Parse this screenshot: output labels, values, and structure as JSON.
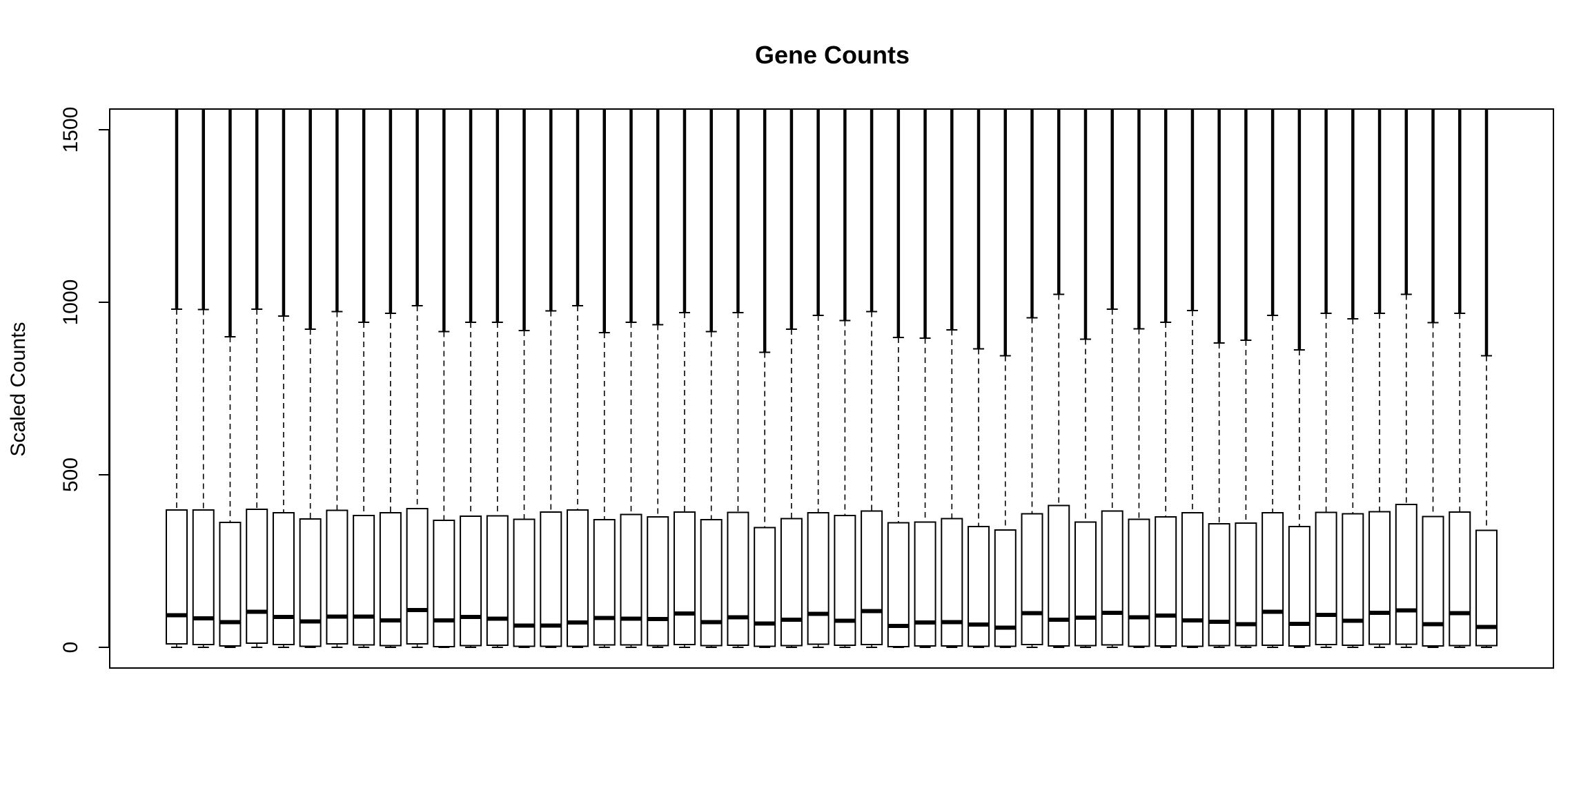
{
  "chart_data": {
    "type": "boxplot",
    "title": "Gene Counts",
    "xlabel": "",
    "ylabel": "Scaled Counts",
    "ylim": [
      -60,
      1560
    ],
    "yticks": [
      0,
      500,
      1000,
      1500
    ],
    "ytick_labels": [
      "0",
      "500",
      "1000",
      "1500"
    ],
    "grid": false,
    "legend": "none",
    "boxes": [
      {
        "q1": 10,
        "median": 93,
        "q3": 398,
        "upper_whisker": 980,
        "lower_whisker": 0
      },
      {
        "q1": 8,
        "median": 84,
        "q3": 398,
        "upper_whisker": 979,
        "lower_whisker": 0
      },
      {
        "q1": 4,
        "median": 73,
        "q3": 362,
        "upper_whisker": 900,
        "lower_whisker": 0
      },
      {
        "q1": 12,
        "median": 103,
        "q3": 400,
        "upper_whisker": 980,
        "lower_whisker": 0
      },
      {
        "q1": 8,
        "median": 88,
        "q3": 390,
        "upper_whisker": 960,
        "lower_whisker": 0
      },
      {
        "q1": 3,
        "median": 75,
        "q3": 372,
        "upper_whisker": 922,
        "lower_whisker": 0
      },
      {
        "q1": 10,
        "median": 89,
        "q3": 397,
        "upper_whisker": 973,
        "lower_whisker": 0
      },
      {
        "q1": 7,
        "median": 89,
        "q3": 382,
        "upper_whisker": 942,
        "lower_whisker": 0
      },
      {
        "q1": 5,
        "median": 78,
        "q3": 390,
        "upper_whisker": 968,
        "lower_whisker": 0
      },
      {
        "q1": 10,
        "median": 108,
        "q3": 402,
        "upper_whisker": 990,
        "lower_whisker": 0
      },
      {
        "q1": 2,
        "median": 78,
        "q3": 368,
        "upper_whisker": 915,
        "lower_whisker": 0
      },
      {
        "q1": 5,
        "median": 88,
        "q3": 380,
        "upper_whisker": 942,
        "lower_whisker": 0
      },
      {
        "q1": 6,
        "median": 83,
        "q3": 381,
        "upper_whisker": 942,
        "lower_whisker": 0
      },
      {
        "q1": 3,
        "median": 63,
        "q3": 371,
        "upper_whisker": 918,
        "lower_whisker": 0
      },
      {
        "q1": 3,
        "median": 63,
        "q3": 392,
        "upper_whisker": 975,
        "lower_whisker": 0
      },
      {
        "q1": 3,
        "median": 72,
        "q3": 398,
        "upper_whisker": 990,
        "lower_whisker": 0
      },
      {
        "q1": 7,
        "median": 85,
        "q3": 370,
        "upper_whisker": 912,
        "lower_whisker": 0
      },
      {
        "q1": 7,
        "median": 83,
        "q3": 385,
        "upper_whisker": 942,
        "lower_whisker": 0
      },
      {
        "q1": 5,
        "median": 82,
        "q3": 378,
        "upper_whisker": 935,
        "lower_whisker": 0
      },
      {
        "q1": 8,
        "median": 98,
        "q3": 392,
        "upper_whisker": 970,
        "lower_whisker": 0
      },
      {
        "q1": 5,
        "median": 73,
        "q3": 370,
        "upper_whisker": 915,
        "lower_whisker": 0
      },
      {
        "q1": 6,
        "median": 87,
        "q3": 391,
        "upper_whisker": 970,
        "lower_whisker": 0
      },
      {
        "q1": 3,
        "median": 69,
        "q3": 347,
        "upper_whisker": 855,
        "lower_whisker": 0
      },
      {
        "q1": 5,
        "median": 80,
        "q3": 373,
        "upper_whisker": 922,
        "lower_whisker": 0
      },
      {
        "q1": 9,
        "median": 97,
        "q3": 390,
        "upper_whisker": 962,
        "lower_whisker": 0
      },
      {
        "q1": 6,
        "median": 77,
        "q3": 382,
        "upper_whisker": 947,
        "lower_whisker": 0
      },
      {
        "q1": 8,
        "median": 105,
        "q3": 395,
        "upper_whisker": 973,
        "lower_whisker": 0
      },
      {
        "q1": 2,
        "median": 62,
        "q3": 361,
        "upper_whisker": 898,
        "lower_whisker": 0
      },
      {
        "q1": 4,
        "median": 72,
        "q3": 363,
        "upper_whisker": 896,
        "lower_whisker": 0
      },
      {
        "q1": 4,
        "median": 73,
        "q3": 373,
        "upper_whisker": 920,
        "lower_whisker": 0
      },
      {
        "q1": 3,
        "median": 66,
        "q3": 350,
        "upper_whisker": 865,
        "lower_whisker": 0
      },
      {
        "q1": 3,
        "median": 57,
        "q3": 340,
        "upper_whisker": 845,
        "lower_whisker": 0
      },
      {
        "q1": 8,
        "median": 99,
        "q3": 387,
        "upper_whisker": 955,
        "lower_whisker": 0
      },
      {
        "q1": 4,
        "median": 80,
        "q3": 411,
        "upper_whisker": 1023,
        "lower_whisker": 0
      },
      {
        "q1": 5,
        "median": 86,
        "q3": 363,
        "upper_whisker": 893,
        "lower_whisker": 0
      },
      {
        "q1": 7,
        "median": 100,
        "q3": 395,
        "upper_whisker": 980,
        "lower_whisker": 0
      },
      {
        "q1": 3,
        "median": 87,
        "q3": 371,
        "upper_whisker": 923,
        "lower_whisker": 0
      },
      {
        "q1": 4,
        "median": 92,
        "q3": 378,
        "upper_whisker": 942,
        "lower_whisker": 0
      },
      {
        "q1": 3,
        "median": 78,
        "q3": 390,
        "upper_whisker": 976,
        "lower_whisker": 0
      },
      {
        "q1": 5,
        "median": 74,
        "q3": 358,
        "upper_whisker": 882,
        "lower_whisker": 0
      },
      {
        "q1": 5,
        "median": 67,
        "q3": 360,
        "upper_whisker": 890,
        "lower_whisker": 0
      },
      {
        "q1": 6,
        "median": 103,
        "q3": 390,
        "upper_whisker": 962,
        "lower_whisker": 0
      },
      {
        "q1": 4,
        "median": 68,
        "q3": 350,
        "upper_whisker": 862,
        "lower_whisker": 0
      },
      {
        "q1": 8,
        "median": 94,
        "q3": 391,
        "upper_whisker": 968,
        "lower_whisker": 0
      },
      {
        "q1": 6,
        "median": 77,
        "q3": 387,
        "upper_whisker": 952,
        "lower_whisker": 0
      },
      {
        "q1": 9,
        "median": 100,
        "q3": 393,
        "upper_whisker": 968,
        "lower_whisker": 0
      },
      {
        "q1": 9,
        "median": 107,
        "q3": 414,
        "upper_whisker": 1023,
        "lower_whisker": 0
      },
      {
        "q1": 4,
        "median": 67,
        "q3": 379,
        "upper_whisker": 941,
        "lower_whisker": 0
      },
      {
        "q1": 5,
        "median": 99,
        "q3": 392,
        "upper_whisker": 968,
        "lower_whisker": 0
      },
      {
        "q1": 5,
        "median": 59,
        "q3": 339,
        "upper_whisker": 845,
        "lower_whisker": 0
      }
    ]
  }
}
